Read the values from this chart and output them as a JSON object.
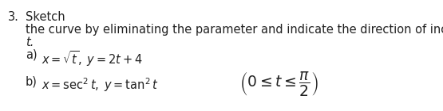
{
  "number": "3.",
  "word_sketch": "Sketch",
  "line2": "the curve by eliminating the parameter and indicate the direction of increasing",
  "line3": "t.",
  "part_a_label": "a)",
  "part_a_eq1": "$x = \\sqrt{t}$",
  "part_a_comma": ",",
  "part_a_eq2": "$y = 2t + 4$",
  "part_b_label": "b)",
  "part_b_eq1": "$x = \\sec^2 t$",
  "part_b_comma": ",",
  "part_b_eq2": "$y = \\tan^2 t$",
  "constraint": "$\\left(0 \\leq t \\leq \\dfrac{\\pi}{2}\\right)$",
  "bg_color": "#ffffff",
  "text_color": "#222222",
  "fontsize": 10.5
}
